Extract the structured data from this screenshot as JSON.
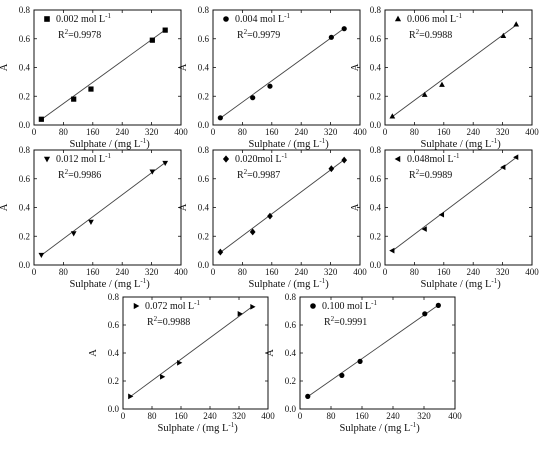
{
  "chart_data": [
    {
      "type": "scatter",
      "xlabel": "Sulphate  /  (mg L-1)",
      "ylabel": "A",
      "xlim": [
        0,
        400
      ],
      "ylim": [
        0.0,
        0.8
      ],
      "xticks": [
        "0",
        "80",
        "160",
        "240",
        "320",
        "400"
      ],
      "yticks": [
        "0.0",
        "0.2",
        "0.4",
        "0.6",
        "0.8"
      ],
      "series": [
        {
          "name": "0.002 mol L-1",
          "marker": "square",
          "r2_label": "R2=0.9978",
          "x": [
            20,
            108,
            155,
            322,
            357
          ],
          "y": [
            0.04,
            0.18,
            0.25,
            0.59,
            0.66
          ],
          "fit": {
            "x": [
              20,
              357
            ],
            "y": [
              0.038,
              0.662
            ]
          }
        }
      ]
    },
    {
      "type": "scatter",
      "xlabel": "Sulphate  /  (mg L-1)",
      "ylabel": "A",
      "xlim": [
        0,
        400
      ],
      "ylim": [
        0.0,
        0.8
      ],
      "xticks": [
        "0",
        "80",
        "160",
        "240",
        "320",
        "400"
      ],
      "yticks": [
        "0.0",
        "0.2",
        "0.4",
        "0.6",
        "0.8"
      ],
      "series": [
        {
          "name": "0.004 mol L-1",
          "marker": "circle",
          "r2_label": "R2=0.9979",
          "x": [
            20,
            108,
            155,
            322,
            357
          ],
          "y": [
            0.05,
            0.19,
            0.27,
            0.61,
            0.67
          ],
          "fit": {
            "x": [
              20,
              357
            ],
            "y": [
              0.048,
              0.672
            ]
          }
        }
      ]
    },
    {
      "type": "scatter",
      "xlabel": "Sulphate  /  (mg L-1)",
      "ylabel": "A",
      "xlim": [
        0,
        400
      ],
      "ylim": [
        0.0,
        0.8
      ],
      "xticks": [
        "0",
        "80",
        "160",
        "240",
        "320",
        "400"
      ],
      "yticks": [
        "0.0",
        "0.2",
        "0.4",
        "0.6",
        "0.8"
      ],
      "series": [
        {
          "name": "0.006 mol L-1",
          "marker": "triangle-up",
          "r2_label": "R2=0.9988",
          "x": [
            20,
            108,
            155,
            322,
            357
          ],
          "y": [
            0.06,
            0.21,
            0.28,
            0.62,
            0.7
          ],
          "fit": {
            "x": [
              20,
              357
            ],
            "y": [
              0.058,
              0.695
            ]
          }
        }
      ]
    },
    {
      "type": "scatter",
      "xlabel": "Sulphate  /  (mg L-1)",
      "ylabel": "A",
      "xlim": [
        0,
        400
      ],
      "ylim": [
        0.0,
        0.8
      ],
      "xticks": [
        "0",
        "80",
        "160",
        "240",
        "320",
        "400"
      ],
      "yticks": [
        "0.0",
        "0.2",
        "0.4",
        "0.6",
        "0.8"
      ],
      "series": [
        {
          "name": "0.012 mol L-1",
          "marker": "triangle-down",
          "r2_label": "R2=0.9986",
          "x": [
            20,
            108,
            155,
            322,
            357
          ],
          "y": [
            0.07,
            0.22,
            0.3,
            0.65,
            0.71
          ],
          "fit": {
            "x": [
              20,
              357
            ],
            "y": [
              0.068,
              0.712
            ]
          }
        }
      ]
    },
    {
      "type": "scatter",
      "xlabel": "Sulphate  /  (mg L-1)",
      "ylabel": "A",
      "xlim": [
        0,
        400
      ],
      "ylim": [
        0.0,
        0.8
      ],
      "xticks": [
        "0",
        "80",
        "160",
        "240",
        "320",
        "400"
      ],
      "yticks": [
        "0.0",
        "0.2",
        "0.4",
        "0.6",
        "0.8"
      ],
      "series": [
        {
          "name": "0.020mol L-1",
          "marker": "diamond",
          "r2_label": "R2=0.9987",
          "x": [
            20,
            108,
            155,
            322,
            357
          ],
          "y": [
            0.09,
            0.23,
            0.34,
            0.67,
            0.73
          ],
          "fit": {
            "x": [
              20,
              357
            ],
            "y": [
              0.088,
              0.732
            ]
          }
        }
      ]
    },
    {
      "type": "scatter",
      "xlabel": "Sulphate  /  (mg L-1)",
      "ylabel": "A",
      "xlim": [
        0,
        400
      ],
      "ylim": [
        0.0,
        0.8
      ],
      "xticks": [
        "0",
        "80",
        "160",
        "240",
        "320",
        "400"
      ],
      "yticks": [
        "0.0",
        "0.2",
        "0.4",
        "0.6",
        "0.8"
      ],
      "series": [
        {
          "name": "0.048mol L-1",
          "marker": "triangle-left",
          "r2_label": "R2=0.9989",
          "x": [
            20,
            108,
            155,
            322,
            357
          ],
          "y": [
            0.1,
            0.25,
            0.35,
            0.68,
            0.75
          ],
          "fit": {
            "x": [
              20,
              357
            ],
            "y": [
              0.098,
              0.748
            ]
          }
        }
      ]
    },
    {
      "type": "scatter",
      "xlabel": "Sulphate  /  (mg L-1)",
      "ylabel": "A",
      "xlim": [
        0,
        400
      ],
      "ylim": [
        0.0,
        0.8
      ],
      "xticks": [
        "0",
        "80",
        "160",
        "240",
        "320",
        "400"
      ],
      "yticks": [
        "0.0",
        "0.2",
        "0.4",
        "0.6",
        "0.8"
      ],
      "series": [
        {
          "name": "0.072 mol L-1",
          "marker": "triangle-right",
          "r2_label": "R2=0.9988",
          "x": [
            20,
            108,
            155,
            322,
            357
          ],
          "y": [
            0.09,
            0.23,
            0.33,
            0.68,
            0.73
          ],
          "fit": {
            "x": [
              20,
              357
            ],
            "y": [
              0.088,
              0.732
            ]
          }
        }
      ]
    },
    {
      "type": "scatter",
      "xlabel": "Sulphate  /  (mg L-1)",
      "ylabel": "A",
      "xlim": [
        0,
        400
      ],
      "ylim": [
        0.0,
        0.8
      ],
      "xticks": [
        "0",
        "80",
        "160",
        "240",
        "320",
        "400"
      ],
      "yticks": [
        "0.0",
        "0.2",
        "0.4",
        "0.6",
        "0.8"
      ],
      "series": [
        {
          "name": "0.100 mol L-1",
          "marker": "circle",
          "r2_label": "R2=0.9991",
          "x": [
            20,
            108,
            155,
            322,
            357
          ],
          "y": [
            0.09,
            0.24,
            0.34,
            0.68,
            0.74
          ],
          "fit": {
            "x": [
              20,
              357
            ],
            "y": [
              0.088,
              0.742
            ]
          }
        }
      ]
    }
  ]
}
